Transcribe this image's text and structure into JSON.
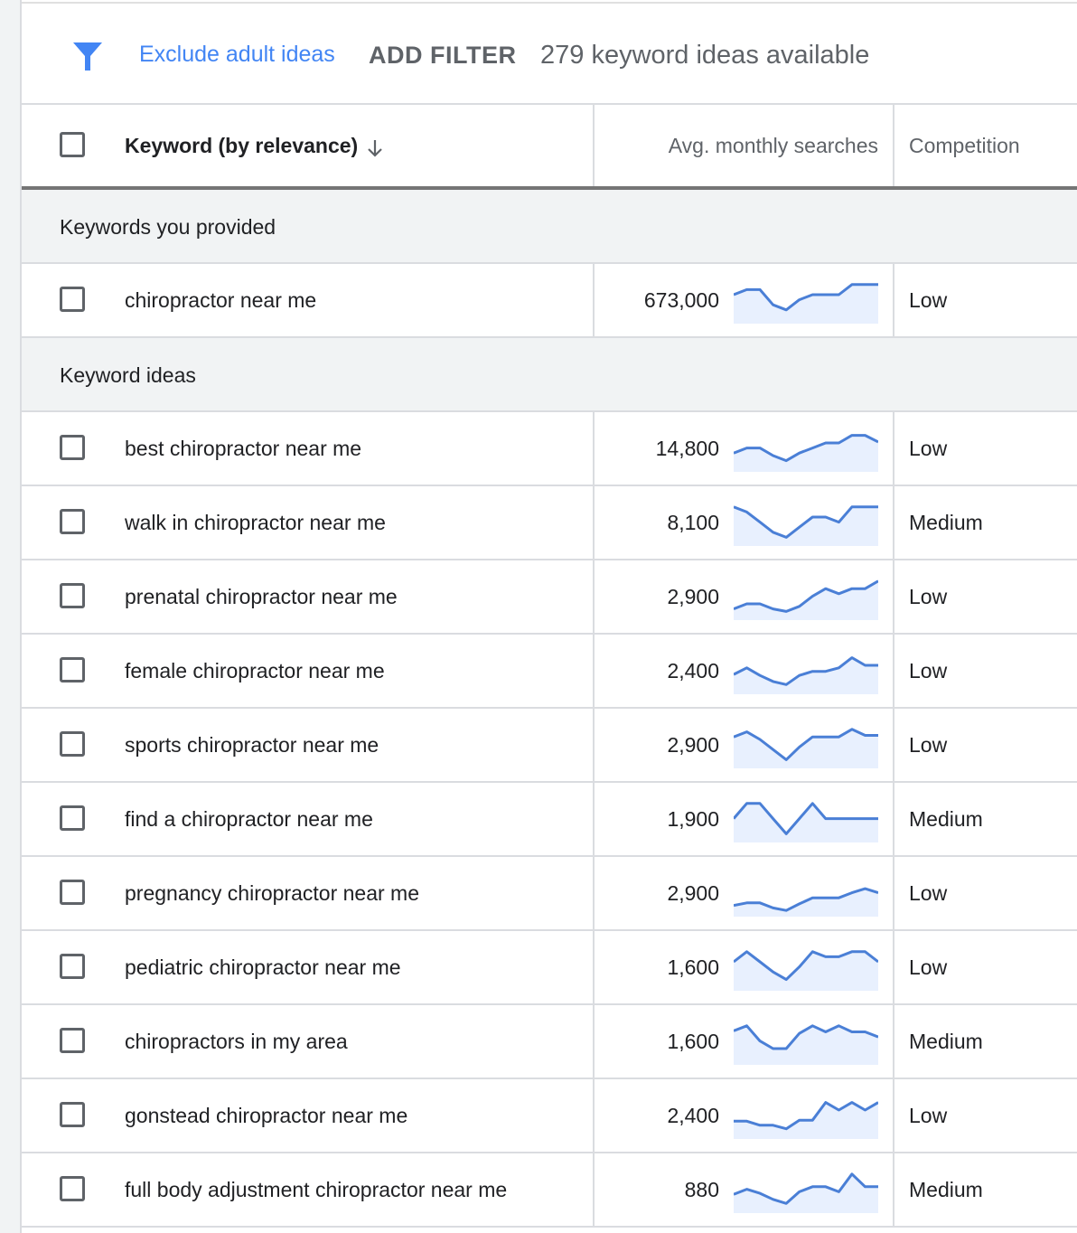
{
  "toolbar": {
    "filter_icon": "funnel-icon",
    "exclude_label": "Exclude adult ideas",
    "add_filter_label": "ADD FILTER",
    "ideas_count_text": "279 keyword ideas available",
    "accent_color": "#4285f4"
  },
  "table": {
    "headers": {
      "keyword": "Keyword (by relevance)",
      "sort_icon": "arrow-down-icon",
      "searches": "Avg. monthly searches",
      "competition": "Competition"
    },
    "sections": [
      {
        "label": "Keywords you provided",
        "rows": [
          {
            "keyword": "chiropractor near me",
            "searches": "673,000",
            "trend": [
              4,
              5,
              5,
              2,
              1,
              3,
              4,
              4,
              4,
              6,
              6,
              6
            ],
            "competition": "Low"
          }
        ]
      },
      {
        "label": "Keyword ideas",
        "rows": [
          {
            "keyword": "best chiropractor near me",
            "searches": "14,800",
            "trend": [
              2,
              3,
              3,
              1.5,
              0.5,
              2,
              3,
              4,
              4,
              5.5,
              5.5,
              4.2
            ],
            "competition": "Low"
          },
          {
            "keyword": "walk in chiropractor near me",
            "searches": "8,100",
            "trend": [
              6,
              5,
              3,
              1,
              0,
              2,
              4,
              4,
              3,
              6,
              6,
              6
            ],
            "competition": "Medium"
          },
          {
            "keyword": "prenatal chiropractor near me",
            "searches": "2,900",
            "trend": [
              0.5,
              1.5,
              1.5,
              0.5,
              0,
              1,
              3,
              4.5,
              3.5,
              4.5,
              4.5,
              6
            ],
            "competition": "Low"
          },
          {
            "keyword": "female chiropractor near me",
            "searches": "2,400",
            "trend": [
              2.2,
              3.5,
              2,
              0.8,
              0.2,
              2,
              2.8,
              2.8,
              3.5,
              5.5,
              4,
              4
            ],
            "competition": "Low"
          },
          {
            "keyword": "sports chiropractor near me",
            "searches": "2,900",
            "trend": [
              4.5,
              5.5,
              4,
              2,
              0,
              2.5,
              4.5,
              4.5,
              4.5,
              6,
              4.8,
              4.8
            ],
            "competition": "Low"
          },
          {
            "keyword": "find a chiropractor near me",
            "searches": "1,900",
            "trend": [
              3,
              6,
              6,
              3,
              0,
              3,
              6,
              3,
              3,
              3,
              3,
              3
            ],
            "competition": "Medium"
          },
          {
            "keyword": "pregnancy chiropractor near me",
            "searches": "2,900",
            "trend": [
              0.5,
              1,
              1,
              0,
              -0.5,
              0.8,
              2,
              2,
              2,
              3,
              3.8,
              3
            ],
            "competition": "Low"
          },
          {
            "keyword": "pediatric chiropractor near me",
            "searches": "1,600",
            "trend": [
              4,
              6,
              4,
              2,
              0.5,
              3,
              6,
              5,
              5,
              6,
              6,
              4
            ],
            "competition": "Low"
          },
          {
            "keyword": "chiropractors in my area",
            "searches": "1,600",
            "trend": [
              5,
              6,
              3,
              1.5,
              1.5,
              4.5,
              6,
              4.8,
              6,
              4.8,
              4.8,
              3.8
            ],
            "competition": "Medium"
          },
          {
            "keyword": "gonstead chiropractor near me",
            "searches": "2,400",
            "trend": [
              1.8,
              1.8,
              1,
              1,
              0.3,
              2,
              2,
              5.5,
              4,
              5.5,
              4,
              5.5
            ],
            "competition": "Low"
          },
          {
            "keyword": "full body adjustment chiropractor near me",
            "searches": "880",
            "trend": [
              2,
              3,
              2.2,
              1,
              0.2,
              2.5,
              3.5,
              3.5,
              2.5,
              6,
              3.5,
              3.5
            ],
            "competition": "Medium"
          }
        ]
      }
    ]
  },
  "colors": {
    "sparkline_line": "#4a7fd6",
    "sparkline_fill": "#e8f0fe",
    "section_bg": "#f1f3f4"
  }
}
